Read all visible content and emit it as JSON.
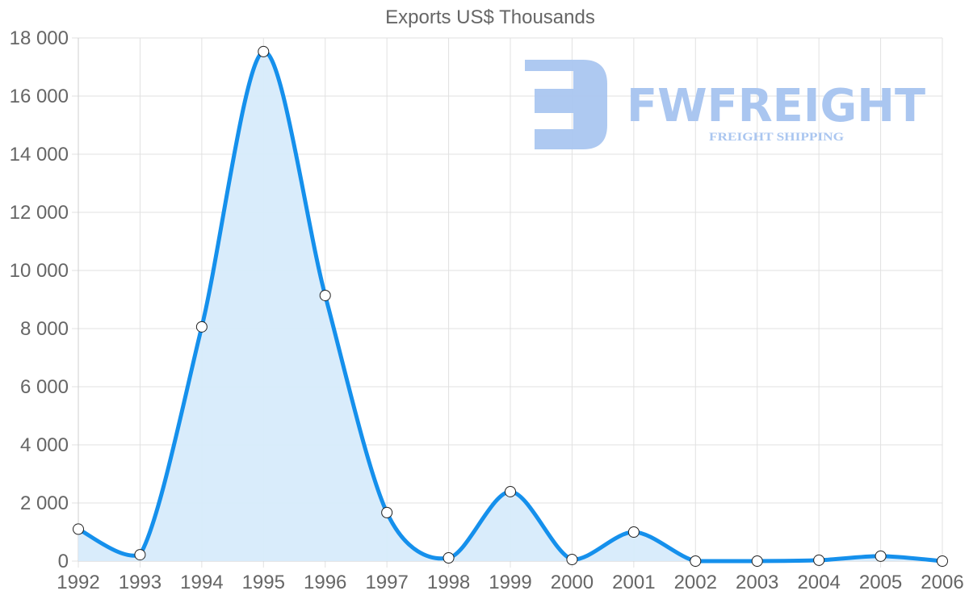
{
  "chart_data": {
    "type": "area",
    "title": "Exports US$ Thousands",
    "xlabel": "",
    "ylabel": "",
    "categories": [
      "1992",
      "1993",
      "1994",
      "1995",
      "1996",
      "1997",
      "1998",
      "1999",
      "2000",
      "2001",
      "2002",
      "2003",
      "2004",
      "2005",
      "2006"
    ],
    "series": [
      {
        "name": "Exports US$ Thousands",
        "values": [
          1100,
          220,
          8060,
          17530,
          9140,
          1670,
          110,
          2390,
          55,
          1000,
          0,
          0,
          30,
          170,
          0
        ],
        "line_color": "#1590ec",
        "fill_color": "#d7ebfb"
      }
    ],
    "ylim": [
      0,
      18000
    ],
    "y_ticks": [
      0,
      2000,
      4000,
      6000,
      8000,
      10000,
      12000,
      14000,
      16000,
      18000
    ],
    "y_tick_labels": [
      "0",
      "2 000",
      "4 000",
      "6 000",
      "8 000",
      "10 000",
      "12 000",
      "14 000",
      "16 000",
      "18 000"
    ],
    "grid": true,
    "legend": "none"
  },
  "watermark": {
    "brand": "FWFREIGHT",
    "tagline": "FREIGHT SHIPPING",
    "color": "#aac6f0"
  }
}
